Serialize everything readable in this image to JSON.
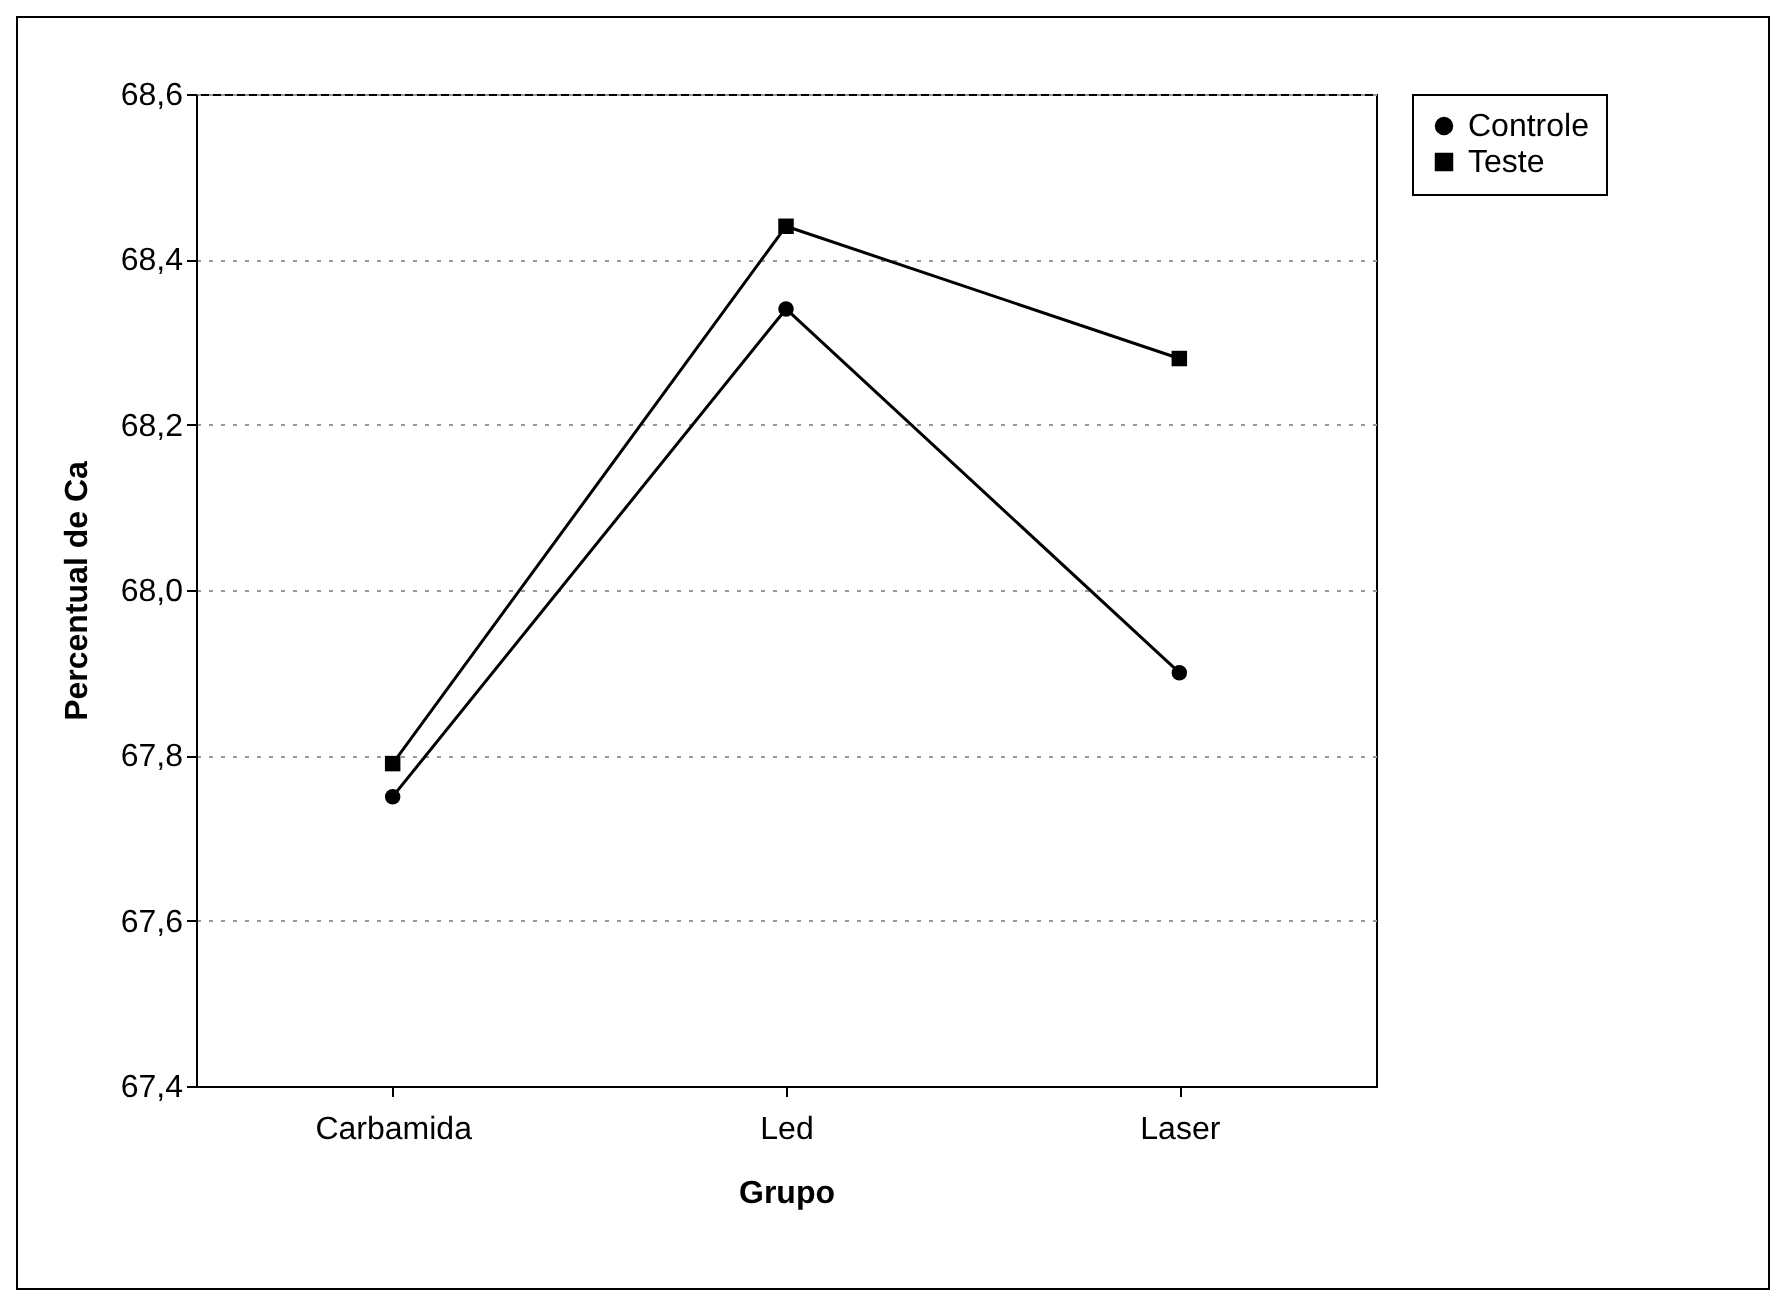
{
  "chart_data": {
    "type": "line",
    "xlabel": "Grupo",
    "ylabel": "Percentual de Ca",
    "categories": [
      "Carbamida",
      "Led",
      "Laser"
    ],
    "series": [
      {
        "name": "Controle",
        "color": "#000000",
        "marker": "circle",
        "values": [
          67.75,
          68.34,
          67.9
        ]
      },
      {
        "name": "Teste",
        "color": "#000000",
        "marker": "square",
        "values": [
          67.79,
          68.44,
          68.28
        ]
      }
    ],
    "ylim": [
      67.4,
      68.6
    ],
    "yticks": [
      {
        "value": 67.4,
        "label": "67,4"
      },
      {
        "value": 67.6,
        "label": "67,6"
      },
      {
        "value": 67.8,
        "label": "67,8"
      },
      {
        "value": 68.0,
        "label": "68,0"
      },
      {
        "value": 68.2,
        "label": "68,2"
      },
      {
        "value": 68.4,
        "label": "68,4"
      },
      {
        "value": 68.6,
        "label": "68,6"
      }
    ],
    "grid": "y",
    "legend": "right",
    "line_style": "solid"
  }
}
